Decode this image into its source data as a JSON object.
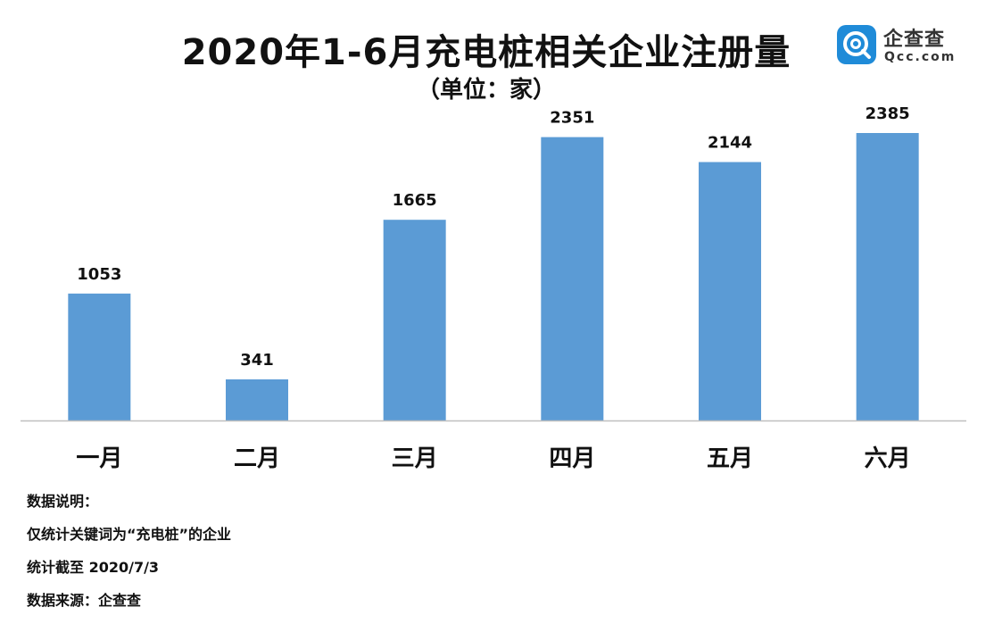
{
  "title": "2020年1-6月充电桩相关企业注册量",
  "subtitle": "（单位：家）",
  "logo": {
    "cn": "企查查",
    "en": "Qcc.com"
  },
  "notes": [
    "数据说明：",
    "仅统计关键词为“充电桩”的企业",
    "统计截至 2020/7/3",
    "数据来源：企查查"
  ],
  "colors": {
    "bar": "#5b9bd5",
    "axis": "#bfbfbf",
    "brand": "#1f8bd8"
  },
  "chart_data": {
    "type": "bar",
    "categories": [
      "一月",
      "二月",
      "三月",
      "四月",
      "五月",
      "六月"
    ],
    "values": [
      1053,
      341,
      1665,
      2351,
      2144,
      2385
    ],
    "data_labels": [
      "1053",
      "341",
      "1665",
      "2351",
      "2144",
      "2385"
    ],
    "title": "2020年1-6月充电桩相关企业注册量",
    "subtitle": "（单位：家）",
    "xlabel": "",
    "ylabel": "",
    "ylim": [
      0,
      2385
    ],
    "grid": false,
    "legend": "none"
  }
}
